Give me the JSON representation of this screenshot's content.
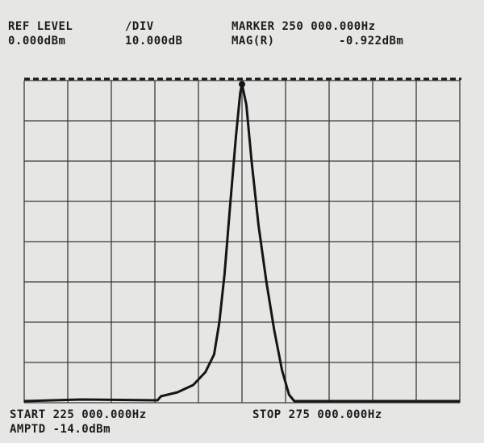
{
  "chart_data": {
    "type": "line",
    "header": {
      "ref_level_label": "REF LEVEL",
      "ref_level": "0.000dBm",
      "div_label": "/DIV",
      "div": "10.000dB",
      "marker": "MARKER 250 000.000Hz",
      "mag_label": "MAG(R)",
      "mag": "-0.922dBm"
    },
    "footer": {
      "start": "START 225 000.000Hz",
      "amptd": "AMPTD -14.0dBm",
      "stop": "STOP 275 000.000Hz"
    },
    "x": [
      225000,
      231500,
      240300,
      240700,
      242600,
      244400,
      245800,
      246800,
      247400,
      248000,
      248600,
      249300,
      249800,
      250000,
      250500,
      251100,
      251900,
      252800,
      253700,
      254600,
      255400,
      256000,
      263900,
      275000
    ],
    "values": [
      -79.6,
      -79.2,
      -79.4,
      -78.4,
      -77.4,
      -75.6,
      -72.4,
      -68,
      -60,
      -48,
      -32,
      -14,
      -3,
      -0.922,
      -6,
      -20,
      -36,
      -50,
      -62,
      -72,
      -78,
      -79.6,
      -79.6,
      -79.6
    ],
    "color": "#151515",
    "xlim": [
      225000,
      275000
    ],
    "ylim": [
      -80,
      0
    ],
    "xticks": [
      225000,
      230000,
      235000,
      240000,
      245000,
      250000,
      255000,
      260000,
      265000,
      270000,
      275000
    ],
    "yticks": [
      -80,
      -70,
      -60,
      -50,
      -40,
      -30,
      -20,
      -10,
      0
    ],
    "grid": true
  }
}
